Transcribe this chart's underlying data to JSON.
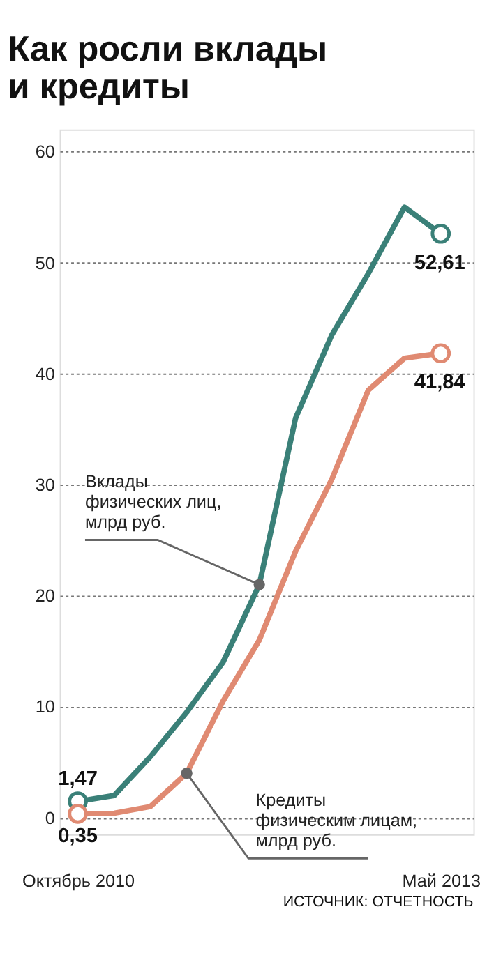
{
  "chart_data": {
    "type": "line",
    "title": "Как росли вклады и кредиты",
    "categories": [
      "Октябрь 2010",
      null,
      null,
      null,
      null,
      null,
      null,
      null,
      null,
      null,
      "Май 2013"
    ],
    "series": [
      {
        "name": "Вклады физических лиц, млрд руб.",
        "color": "#3a8078",
        "values": [
          1.47,
          2.0,
          5.5,
          9.5,
          14,
          21,
          36,
          43.5,
          49,
          55,
          52.61
        ],
        "value_labels": [
          "1,47",
          null,
          null,
          null,
          null,
          null,
          null,
          null,
          null,
          null,
          "52,61"
        ]
      },
      {
        "name": "Кредиты физическим лицам, млрд руб.",
        "color": "#e08a72",
        "values": [
          0.35,
          0.4,
          1.0,
          4.0,
          10.5,
          16,
          24,
          30.5,
          38.5,
          41.4,
          41.84
        ],
        "value_labels": [
          "0,35",
          null,
          null,
          null,
          null,
          null,
          null,
          null,
          null,
          null,
          "41,84"
        ]
      }
    ],
    "ylim": [
      -1.5,
      62
    ],
    "yticks": [
      0,
      10,
      20,
      30,
      40,
      50,
      60
    ],
    "grid": "y",
    "annotations": [
      "ИСТОЧНИК: ОТЧЕТНОСТЬ"
    ]
  }
}
